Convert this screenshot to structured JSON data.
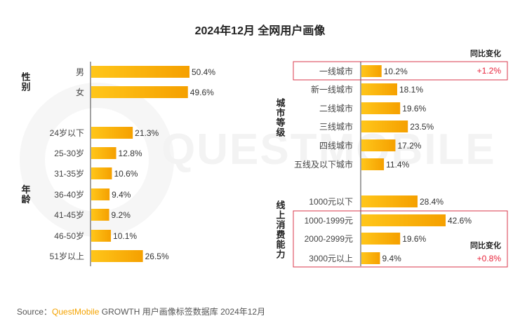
{
  "title": "2024年12月 全网用户画像",
  "watermark": "QUESTMOBILE",
  "source": {
    "prefix": "Source：",
    "brand": "QuestMobile",
    "rest": " GROWTH 用户画像标签数据库 2024年12月"
  },
  "colors": {
    "bar_start": "#ffc61a",
    "bar_end": "#f5a000",
    "axis": "#444444",
    "highlight_box": "#d9364a",
    "change_text": "#e8233a"
  },
  "chart_data": [
    {
      "type": "bar",
      "orientation": "horizontal",
      "groups": [
        {
          "label": "性别",
          "categories": [
            "男",
            "女"
          ],
          "values": [
            50.4,
            49.6
          ],
          "value_labels": [
            "50.4%",
            "49.6%"
          ]
        },
        {
          "label": "年龄",
          "categories": [
            "24岁以下",
            "25-30岁",
            "31-35岁",
            "36-40岁",
            "41-45岁",
            "46-50岁",
            "51岁以上"
          ],
          "values": [
            21.3,
            12.8,
            10.6,
            9.4,
            9.2,
            10.1,
            26.5
          ],
          "value_labels": [
            "21.3%",
            "12.8%",
            "10.6%",
            "9.4%",
            "9.2%",
            "10.1%",
            "26.5%"
          ]
        }
      ],
      "xlim": [
        0,
        54
      ]
    },
    {
      "type": "bar",
      "orientation": "horizontal",
      "groups": [
        {
          "label": "城市等级",
          "categories": [
            "一线城市",
            "新一线城市",
            "二线城市",
            "三线城市",
            "四线城市",
            "五线及以下城市"
          ],
          "values": [
            10.2,
            18.1,
            19.6,
            23.5,
            17.2,
            11.4
          ],
          "value_labels": [
            "10.2%",
            "18.1%",
            "19.6%",
            "23.5%",
            "17.2%",
            "11.4%"
          ]
        },
        {
          "label": "线上消费能力",
          "categories": [
            "1000元以下",
            "1000-1999元",
            "2000-2999元",
            "3000元以上"
          ],
          "values": [
            28.4,
            42.6,
            19.6,
            9.4
          ],
          "value_labels": [
            "28.4%",
            "42.6%",
            "19.6%",
            "9.4%"
          ]
        }
      ],
      "xlim": [
        0,
        45
      ],
      "annotations": [
        {
          "header": "同比变化",
          "value": "+1.2%",
          "applies_to": "一线城市"
        },
        {
          "header": "同比变化",
          "value": "+0.8%",
          "applies_to": "1000-1999元, 2000-2999元, 3000元以上"
        }
      ]
    }
  ]
}
